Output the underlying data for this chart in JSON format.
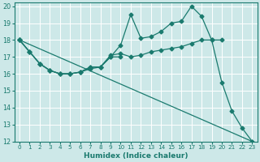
{
  "xlabel": "Humidex (Indice chaleur)",
  "bg_color": "#cde8e8",
  "grid_color": "#b0d8d8",
  "line_color": "#1a7a6e",
  "xlim": [
    -0.5,
    23.5
  ],
  "ylim": [
    12,
    20.2
  ],
  "xticks": [
    0,
    1,
    2,
    3,
    4,
    5,
    6,
    7,
    8,
    9,
    10,
    11,
    12,
    13,
    14,
    15,
    16,
    17,
    18,
    19,
    20,
    21,
    22,
    23
  ],
  "yticks": [
    12,
    13,
    14,
    15,
    16,
    17,
    18,
    19,
    20
  ],
  "lines": [
    {
      "x": [
        0,
        1,
        2,
        3,
        4,
        5,
        6,
        7,
        8,
        9,
        10,
        11,
        12,
        13,
        14,
        15,
        16,
        17,
        18,
        19,
        20,
        21,
        22,
        23
      ],
      "y": [
        18.0,
        17.3,
        16.6,
        16.2,
        16.0,
        16.0,
        16.1,
        16.4,
        16.4,
        17.0,
        17.7,
        19.5,
        18.1,
        18.2,
        18.5,
        19.0,
        19.1,
        20.0,
        19.4,
        18.0,
        15.5,
        13.8,
        12.8,
        12.0
      ]
    },
    {
      "x": [
        0,
        1,
        2,
        3,
        4,
        5,
        6,
        7,
        8,
        9,
        10,
        11,
        12,
        13,
        14,
        15,
        16,
        17,
        18,
        19,
        20
      ],
      "y": [
        18.0,
        17.3,
        16.6,
        16.2,
        16.0,
        16.0,
        16.1,
        16.4,
        16.4,
        17.1,
        17.2,
        17.0,
        17.1,
        17.3,
        17.4,
        17.5,
        17.6,
        17.8,
        18.0,
        18.0,
        18.0
      ]
    },
    {
      "x": [
        0,
        1,
        2,
        3,
        4,
        5,
        6,
        7,
        8,
        9,
        10
      ],
      "y": [
        18.0,
        17.3,
        16.6,
        16.2,
        16.0,
        16.0,
        16.1,
        16.3,
        16.4,
        17.0,
        17.0
      ]
    },
    {
      "x": [
        0,
        23
      ],
      "y": [
        18.0,
        12.0
      ]
    }
  ]
}
